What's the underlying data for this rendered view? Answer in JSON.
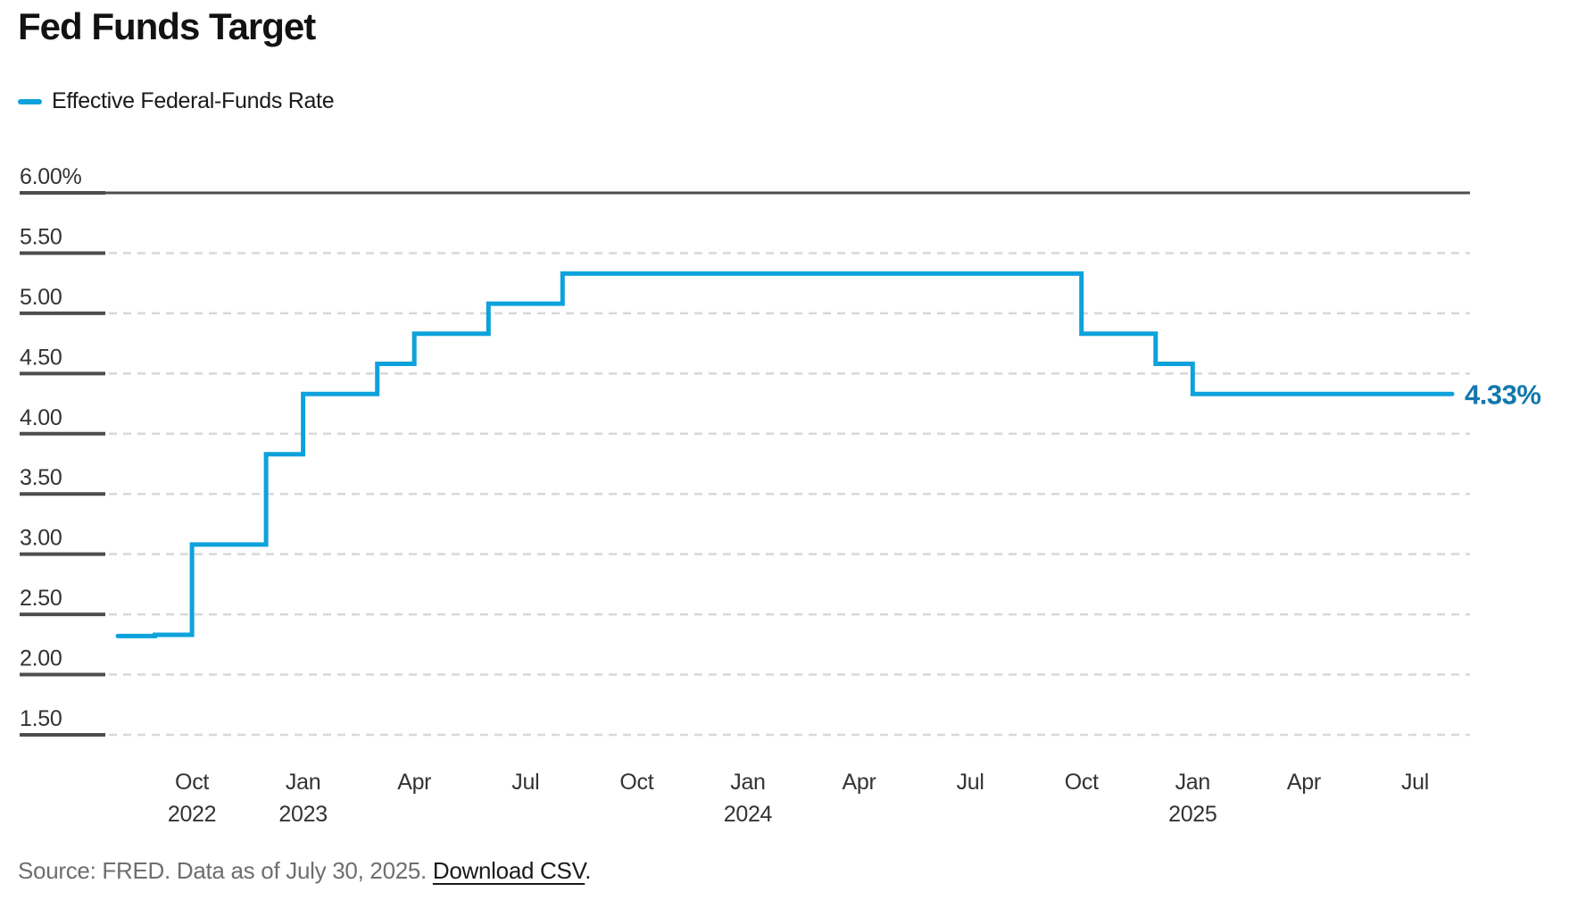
{
  "title": "Fed Funds Target",
  "legend": {
    "label": "Effective Federal-Funds Rate"
  },
  "source": {
    "prefix": "Source: FRED. Data as of July 30, 2025. ",
    "link": "Download CSV",
    "suffix": "."
  },
  "colors": {
    "line": "#0da2dc",
    "end_label": "#1277ad",
    "grid_dash": "#d8d8d8",
    "grid_solid": "#4d4d4d",
    "axis_text": "#333333",
    "title": "#121212",
    "source_text": "#6e6e6e"
  },
  "chart_data": {
    "type": "line",
    "step": true,
    "title": "Fed Funds Target",
    "xlabel": "",
    "ylabel": "",
    "legend_position": "top-left",
    "grid": "dashed-horizontal",
    "ylim": [
      1.5,
      6.0
    ],
    "x_range": [
      "2022-08",
      "2025-08"
    ],
    "y_ticks": [
      {
        "label": "6.00%",
        "value": 6.0
      },
      {
        "label": "5.50",
        "value": 5.5
      },
      {
        "label": "5.00",
        "value": 5.0
      },
      {
        "label": "4.50",
        "value": 4.5
      },
      {
        "label": "4.00",
        "value": 4.0
      },
      {
        "label": "3.50",
        "value": 3.5
      },
      {
        "label": "3.00",
        "value": 3.0
      },
      {
        "label": "2.50",
        "value": 2.5
      },
      {
        "label": "2.00",
        "value": 2.0
      },
      {
        "label": "1.50",
        "value": 1.5
      }
    ],
    "x_ticks": [
      {
        "label": "Oct",
        "year": "2022",
        "date": "2022-10"
      },
      {
        "label": "Jan",
        "year": "2023",
        "date": "2023-01"
      },
      {
        "label": "Apr",
        "year": "",
        "date": "2023-04"
      },
      {
        "label": "Jul",
        "year": "",
        "date": "2023-07"
      },
      {
        "label": "Oct",
        "year": "",
        "date": "2023-10"
      },
      {
        "label": "Jan",
        "year": "2024",
        "date": "2024-01"
      },
      {
        "label": "Apr",
        "year": "",
        "date": "2024-04"
      },
      {
        "label": "Jul",
        "year": "",
        "date": "2024-07"
      },
      {
        "label": "Oct",
        "year": "",
        "date": "2024-10"
      },
      {
        "label": "Jan",
        "year": "2025",
        "date": "2025-01"
      },
      {
        "label": "Apr",
        "year": "",
        "date": "2025-04"
      },
      {
        "label": "Jul",
        "year": "",
        "date": "2025-07"
      }
    ],
    "series": [
      {
        "name": "Effective Federal-Funds Rate",
        "points": [
          {
            "date": "2022-08",
            "value": 2.32
          },
          {
            "date": "2022-09",
            "value": 2.33
          },
          {
            "date": "2022-10",
            "value": 3.08
          },
          {
            "date": "2022-12",
            "value": 3.83
          },
          {
            "date": "2023-01",
            "value": 4.33
          },
          {
            "date": "2023-03",
            "value": 4.58
          },
          {
            "date": "2023-04",
            "value": 4.83
          },
          {
            "date": "2023-06",
            "value": 5.08
          },
          {
            "date": "2023-08",
            "value": 5.33
          },
          {
            "date": "2024-10",
            "value": 4.83
          },
          {
            "date": "2024-12",
            "value": 4.58
          },
          {
            "date": "2025-01",
            "value": 4.33
          },
          {
            "date": "2025-08",
            "value": 4.33
          }
        ]
      }
    ],
    "end_label": "4.33%"
  }
}
